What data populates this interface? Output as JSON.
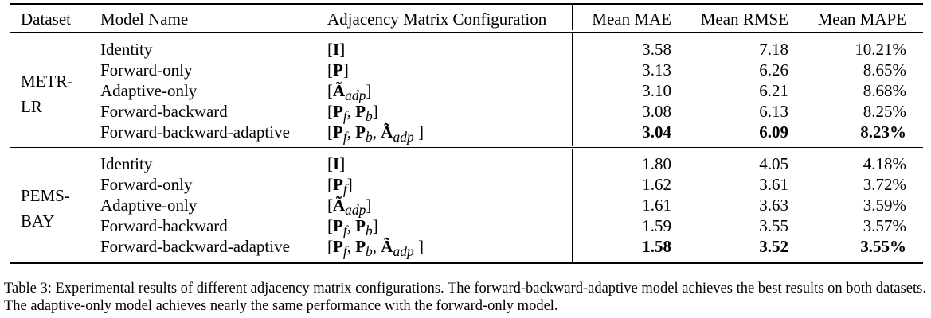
{
  "table": {
    "headers": [
      "Dataset",
      "Model Name",
      "Adjacency Matrix Configuration",
      "Mean MAE",
      "Mean RMSE",
      "Mean MAPE"
    ],
    "groups": [
      {
        "dataset": "METR-\nLR",
        "rows": [
          {
            "model": "Identity",
            "config": "[I]",
            "mae": "3.58",
            "rmse": "7.18",
            "mape": "10.21%",
            "best": false
          },
          {
            "model": "Forward-only",
            "config": "[P]",
            "mae": "3.13",
            "rmse": "6.26",
            "mape": "8.65%",
            "best": false
          },
          {
            "model": "Adaptive-only",
            "config": "[Ã_adp]",
            "mae": "3.10",
            "rmse": "6.21",
            "mape": "8.68%",
            "best": false
          },
          {
            "model": "Forward-backward",
            "config": "[P_f, P_b]",
            "mae": "3.08",
            "rmse": "6.13",
            "mape": "8.25%",
            "best": false
          },
          {
            "model": "Forward-backward-adaptive",
            "config": "[P_f, P_b, Ã_adp ]",
            "mae": "3.04",
            "rmse": "6.09",
            "mape": "8.23%",
            "best": true
          }
        ]
      },
      {
        "dataset": "PEMS-\nBAY",
        "rows": [
          {
            "model": "Identity",
            "config": "[I]",
            "mae": "1.80",
            "rmse": "4.05",
            "mape": "4.18%",
            "best": false
          },
          {
            "model": "Forward-only",
            "config": "[P_f]",
            "mae": "1.62",
            "rmse": "3.61",
            "mape": "3.72%",
            "best": false
          },
          {
            "model": "Adaptive-only",
            "config": "[Ã_adp]",
            "mae": "1.61",
            "rmse": "3.63",
            "mape": "3.59%",
            "best": false
          },
          {
            "model": "Forward-backward",
            "config": "[P_f, P_b]",
            "mae": "1.59",
            "rmse": "3.55",
            "mape": "3.57%",
            "best": false
          },
          {
            "model": "Forward-backward-adaptive",
            "config": "[P_f, P_b, Ã_adp ]",
            "mae": "1.58",
            "rmse": "3.52",
            "mape": "3.55%",
            "best": true
          }
        ]
      }
    ]
  },
  "caption": "Table 3: Experimental results of different adjacency matrix configurations. The forward-backward-adaptive model achieves the best results on both datasets. The adaptive-only model achieves nearly the same performance with the forward-only model."
}
